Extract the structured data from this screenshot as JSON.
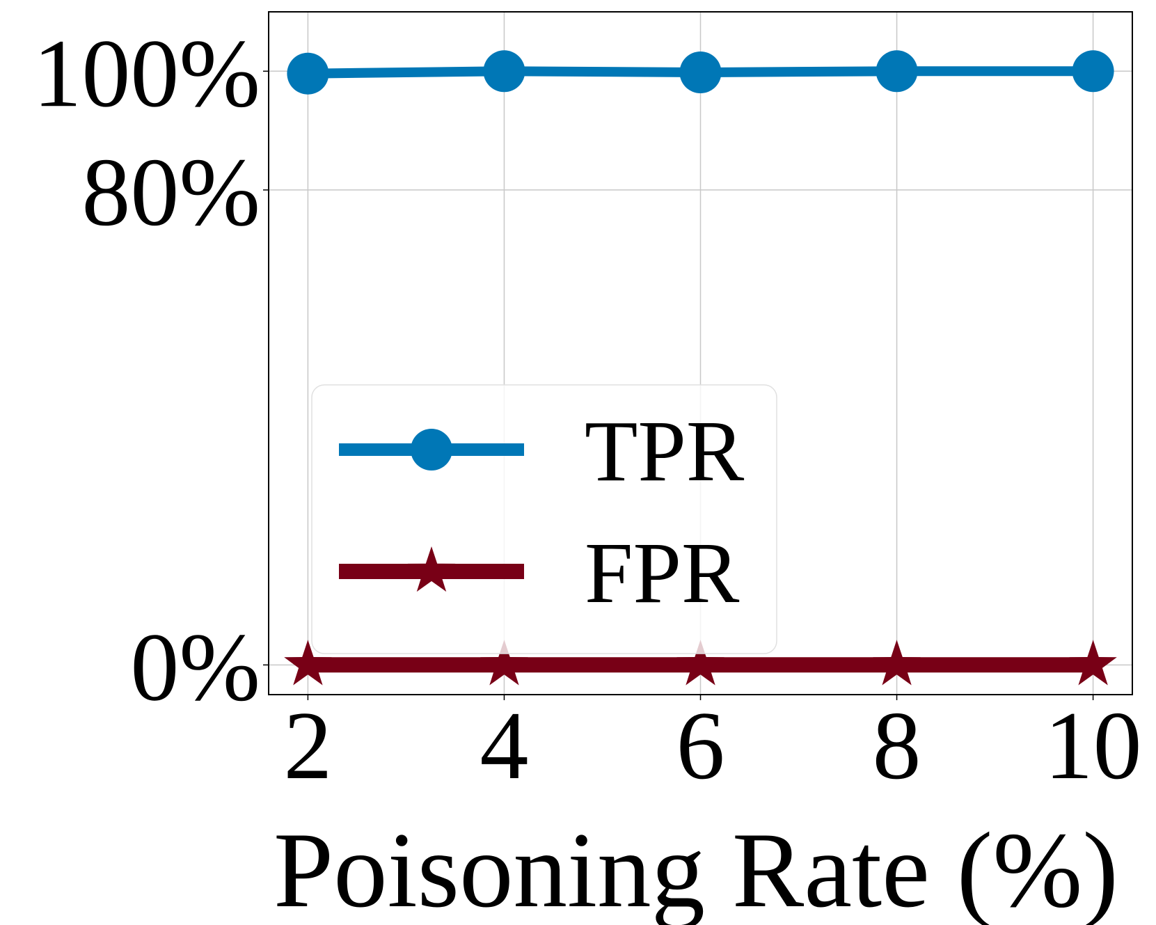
{
  "chart_data": {
    "type": "line",
    "xlabel": "Poisoning Rate (%)",
    "ylabel": "",
    "x": [
      2,
      4,
      6,
      8,
      10
    ],
    "x_tick_labels": [
      "2",
      "4",
      "6",
      "8",
      "10"
    ],
    "xlim": [
      1.6,
      10.4
    ],
    "y_ticks": [
      0,
      80,
      100
    ],
    "y_tick_labels": [
      "0%",
      "80%",
      "100%"
    ],
    "ylim": [
      -5,
      110
    ],
    "grid": true,
    "legend_position": "lower-left",
    "series": [
      {
        "name": "TPR",
        "values": [
          99.6,
          100.0,
          99.8,
          100.0,
          100.0
        ],
        "color": "#0077b6",
        "marker": "circle"
      },
      {
        "name": "FPR",
        "values": [
          0,
          0,
          0,
          0,
          0
        ],
        "color": "#780016",
        "marker": "star"
      }
    ]
  }
}
